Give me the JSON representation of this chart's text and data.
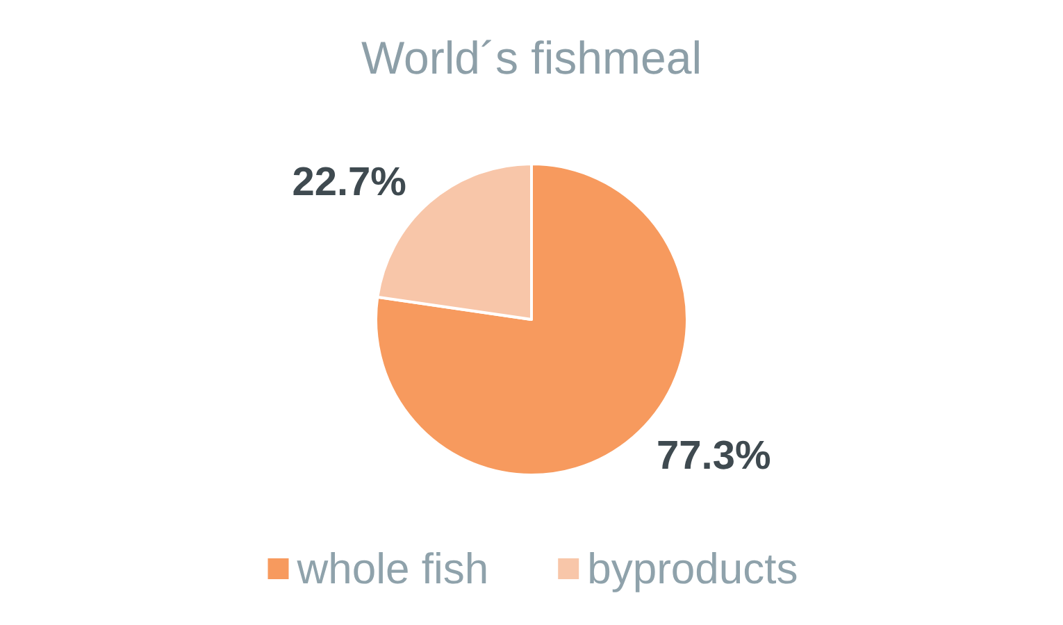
{
  "chart_data": {
    "type": "pie",
    "title": "World´s fishmeal",
    "categories": [
      "whole fish",
      "byproducts"
    ],
    "values": [
      77.3,
      22.7
    ],
    "colors": [
      "#f79a5e",
      "#f8c6a9"
    ],
    "value_labels": [
      "77.3%",
      "22.7%"
    ],
    "legend": "bottom"
  }
}
